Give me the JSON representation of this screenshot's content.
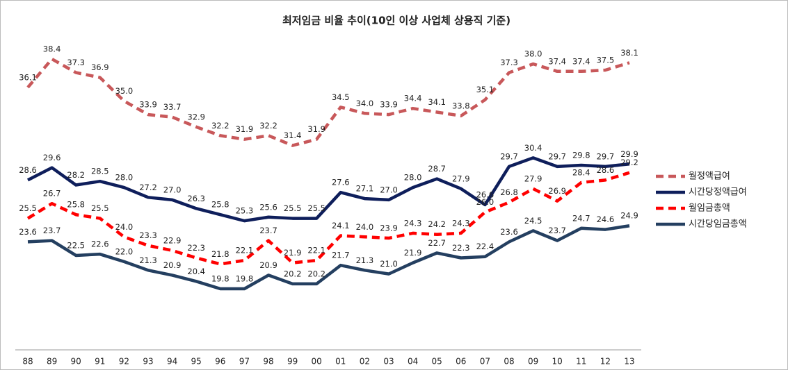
{
  "chart_data": {
    "type": "line",
    "title": "최저임금 비율 추이(10인 이상 사업체 상용직 기준)",
    "categories": [
      "88",
      "89",
      "90",
      "91",
      "92",
      "93",
      "94",
      "95",
      "96",
      "97",
      "98",
      "99",
      "00",
      "01",
      "02",
      "03",
      "04",
      "05",
      "06",
      "07",
      "08",
      "09",
      "10",
      "11",
      "12",
      "13"
    ],
    "series": [
      {
        "name": "월정액급여",
        "color": "#c8585a",
        "dashed": true,
        "values": [
          36.1,
          38.4,
          37.3,
          36.9,
          35.0,
          33.9,
          33.7,
          32.9,
          32.2,
          31.9,
          32.2,
          31.4,
          31.9,
          34.5,
          34.0,
          33.9,
          34.4,
          34.1,
          33.8,
          35.1,
          37.3,
          38.0,
          37.4,
          37.4,
          37.5,
          38.1
        ],
        "value_labels": [
          "36.1",
          "38.4",
          "37.3",
          "36.9",
          "35.0",
          "33.9",
          "33.7",
          "32.9",
          "32.2",
          "31.9",
          "32.2",
          "31.4",
          "31.9",
          "34.5",
          "34.0",
          "33.9",
          "34.4",
          "34.1",
          "33.8",
          "35.1",
          "37.3",
          "38.0",
          "37.4",
          "37.4",
          "37.5",
          "38.1"
        ]
      },
      {
        "name": "시간당정액급여",
        "color": "#0e1e5b",
        "dashed": false,
        "values": [
          28.6,
          29.6,
          28.2,
          28.5,
          28.0,
          27.2,
          27.0,
          26.3,
          25.8,
          25.3,
          25.6,
          25.5,
          25.5,
          27.6,
          27.1,
          27.0,
          28.0,
          28.7,
          27.9,
          26.6,
          29.7,
          30.4,
          29.7,
          29.8,
          29.7,
          29.9
        ],
        "value_labels": [
          "28.6",
          "29.6",
          "28.2",
          "28.5",
          "28.0",
          "27.2",
          "27.0",
          "26.3",
          "25.8",
          "25.3",
          "25.6",
          "25.5",
          "25.5",
          "27.6",
          "27.1",
          "27.0",
          "28.0",
          "28.7",
          "27.9",
          "26.6",
          "29.7",
          "30.4",
          "29.7",
          "29.8",
          "29.7",
          "29.9"
        ]
      },
      {
        "name": "월임금총액",
        "color": "#ff0000",
        "dashed": true,
        "values": [
          25.5,
          26.7,
          25.8,
          25.5,
          24.0,
          23.3,
          22.9,
          22.3,
          21.8,
          22.1,
          23.7,
          21.9,
          22.1,
          24.1,
          24.0,
          23.9,
          24.3,
          24.2,
          24.3,
          26.0,
          26.8,
          27.9,
          26.9,
          28.4,
          28.6,
          29.2
        ],
        "value_labels": [
          "25.5",
          "26.7",
          "25.8",
          "25.5",
          "24.0",
          "23.3",
          "22.9",
          "22.3",
          "21.8",
          "22.1",
          "23.7",
          "21.9",
          "22.1",
          "24.1",
          "24.0",
          "23.9",
          "24.3",
          "24.2",
          "24.3",
          "26.0",
          "26.8",
          "27.9",
          "26.9",
          "28.4",
          "28.6",
          "29.2"
        ]
      },
      {
        "name": "시간당임금총액",
        "color": "#243f60",
        "dashed": false,
        "values": [
          23.6,
          23.7,
          22.5,
          22.6,
          22.0,
          21.3,
          20.9,
          20.4,
          19.8,
          19.8,
          20.9,
          20.2,
          20.2,
          21.7,
          21.3,
          21.0,
          21.9,
          22.7,
          22.3,
          22.4,
          23.6,
          24.5,
          23.7,
          24.7,
          24.6,
          24.9
        ],
        "value_labels": [
          "23.6",
          "23.7",
          "22.5",
          "22.6",
          "22.0",
          "21.3",
          "20.9",
          "20.4",
          "19.8",
          "19.8",
          "20.9",
          "20.2",
          "20.2",
          "21.7",
          "21.3",
          "21.0",
          "21.9",
          "22.7",
          "22.3",
          "22.4",
          "23.6",
          "24.5",
          "23.7",
          "24.7",
          "24.6",
          "24.9"
        ]
      }
    ],
    "legend": "right"
  }
}
